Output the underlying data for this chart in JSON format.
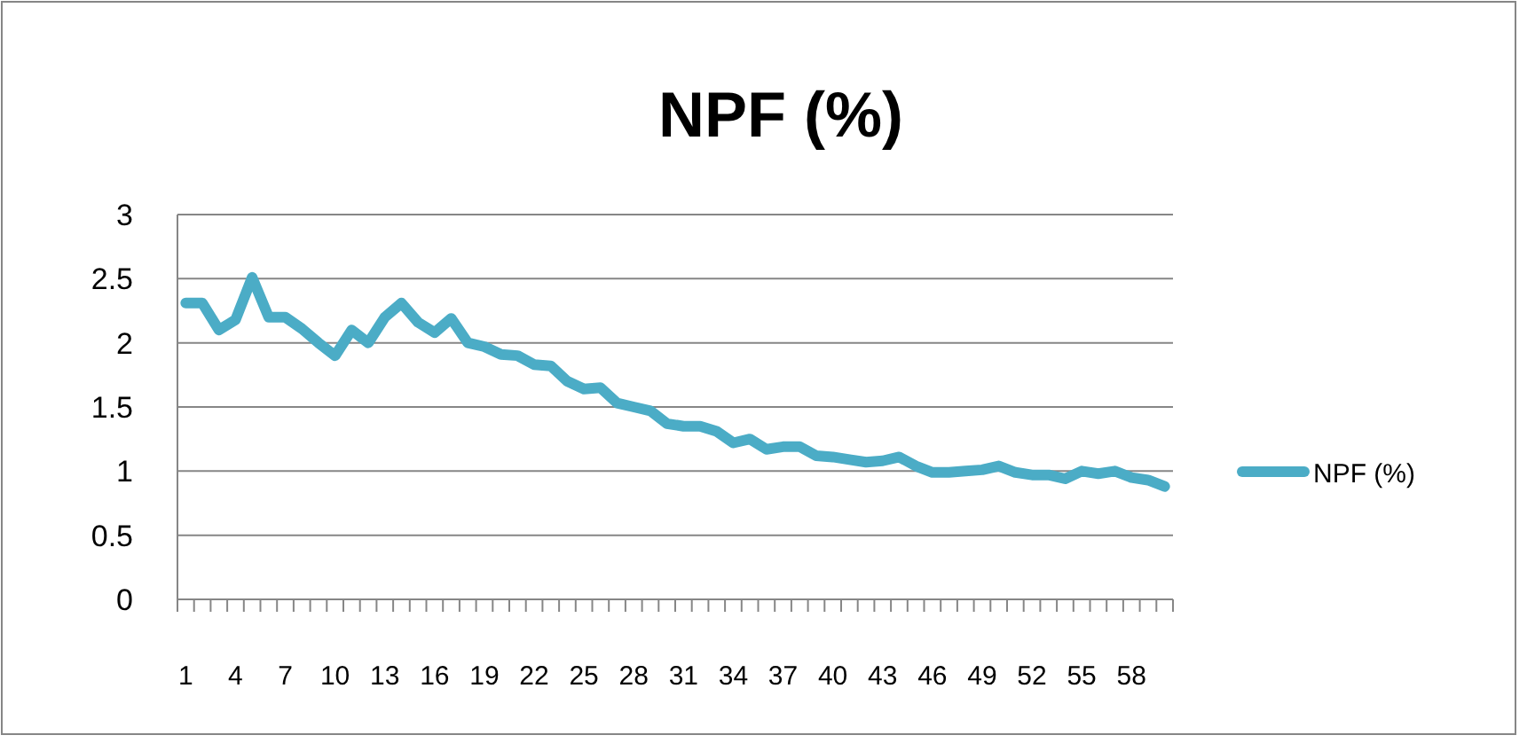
{
  "chart_data": {
    "type": "line",
    "title": "NPF (%)",
    "categories": [
      "1",
      null,
      null,
      "4",
      null,
      null,
      "7",
      null,
      null,
      "10",
      null,
      null,
      "13",
      null,
      null,
      "16",
      null,
      null,
      "19",
      null,
      null,
      "22",
      null,
      null,
      "25",
      null,
      null,
      "28",
      null,
      null,
      "31",
      null,
      null,
      "34",
      null,
      null,
      "37",
      null,
      null,
      "40",
      null,
      null,
      "43",
      null,
      null,
      "46",
      null,
      null,
      "49",
      null,
      null,
      "52",
      null,
      null,
      "55",
      null,
      null,
      "58",
      null,
      null
    ],
    "series": [
      {
        "name": "NPF (%)",
        "color": "#4bacc6",
        "values": [
          2.31,
          2.31,
          2.1,
          2.18,
          2.51,
          2.2,
          2.2,
          2.11,
          2.0,
          1.9,
          2.1,
          2.0,
          2.2,
          2.31,
          2.16,
          2.08,
          2.19,
          2.0,
          1.97,
          1.91,
          1.9,
          1.83,
          1.82,
          1.7,
          1.64,
          1.65,
          1.53,
          1.5,
          1.47,
          1.37,
          1.35,
          1.35,
          1.31,
          1.22,
          1.25,
          1.17,
          1.19,
          1.19,
          1.12,
          1.11,
          1.09,
          1.07,
          1.08,
          1.11,
          1.04,
          0.99,
          0.99,
          1.0,
          1.01,
          1.04,
          0.99,
          0.97,
          0.97,
          0.94,
          1.0,
          0.98,
          1.0,
          0.95,
          0.93,
          0.88
        ]
      }
    ],
    "ylim": [
      0,
      3
    ],
    "yticks": [
      0,
      0.5,
      1,
      1.5,
      2,
      2.5,
      3
    ],
    "grid": "y",
    "legend": "right",
    "marker": "none",
    "line_style": "solid"
  }
}
